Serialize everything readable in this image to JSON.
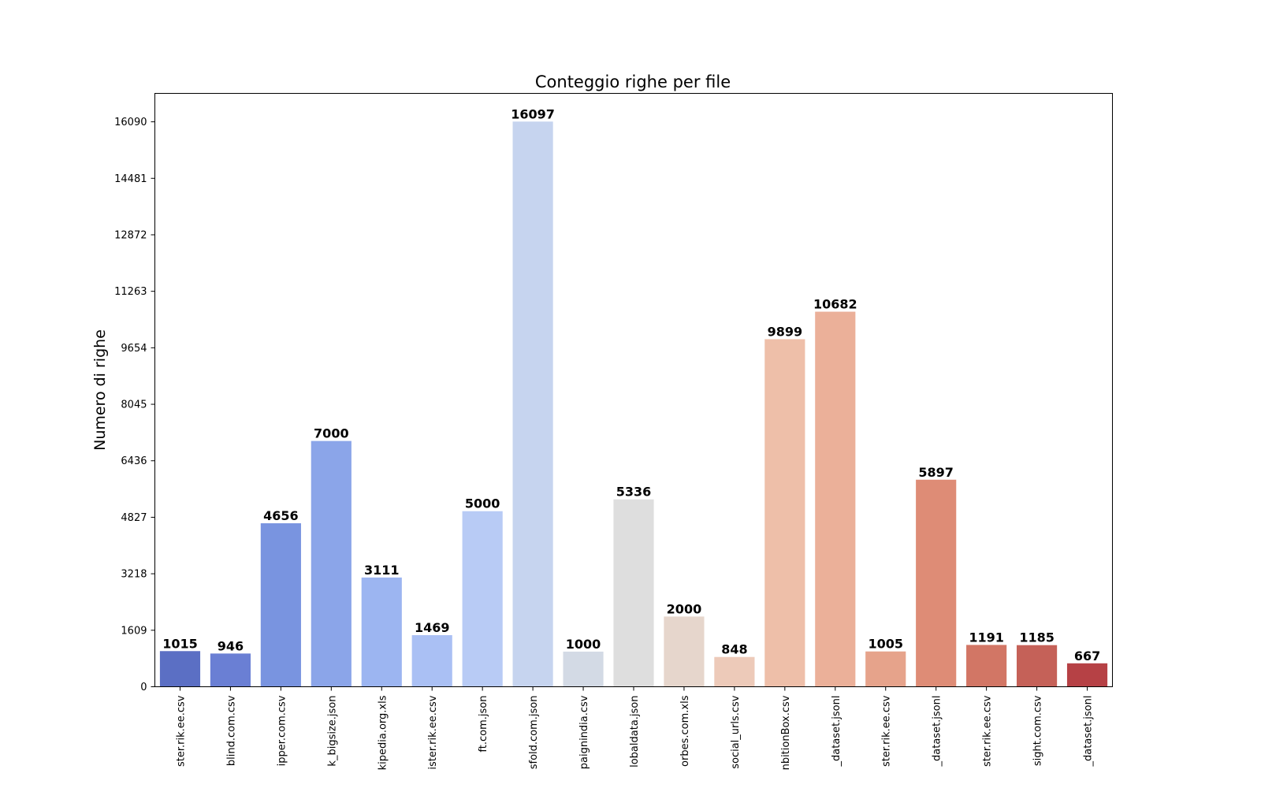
{
  "chart_data": {
    "type": "bar",
    "title": "Conteggio righe per file",
    "xlabel": "",
    "ylabel": "Numero di righe",
    "ylim": [
      0,
      16900
    ],
    "yticks": [
      0,
      1609,
      3218,
      4827,
      6436,
      8045,
      9654,
      11263,
      12872,
      14481,
      16090
    ],
    "grid": false,
    "legend": "none",
    "categories": [
      "ster.rik.ee.csv",
      "blind.com.csv",
      "ipper.com.csv",
      "k_bigsize.json",
      "kipedia.org.xls",
      "ister.rik.ee.csv",
      "ft.com.json",
      "sfold.com.json",
      "paignindia.csv",
      "lobaldata.json",
      "orbes.com.xls",
      "social_urls.csv",
      "nbitionBox.csv",
      "_dataset.jsonl",
      "ster.rik.ee.csv",
      "_dataset.jsonl",
      "ster.rik.ee.csv",
      "sight.com.csv",
      "_dataset.jsonl"
    ],
    "values": [
      1015,
      946,
      4656,
      7000,
      3111,
      1469,
      5000,
      16097,
      1000,
      5336,
      2000,
      848,
      9899,
      10682,
      1005,
      5897,
      1191,
      1185,
      667
    ],
    "colors": [
      "#5b6fc4",
      "#6a7fd4",
      "#7994e0",
      "#8ba5e9",
      "#9cb5f1",
      "#aac0f4",
      "#b8cbf5",
      "#c6d4ef",
      "#d3dae5",
      "#dedede",
      "#e6d6cc",
      "#edcab9",
      "#eebfa9",
      "#ebb099",
      "#e6a38b",
      "#de8c76",
      "#d27665",
      "#c56158",
      "#b64145"
    ]
  }
}
